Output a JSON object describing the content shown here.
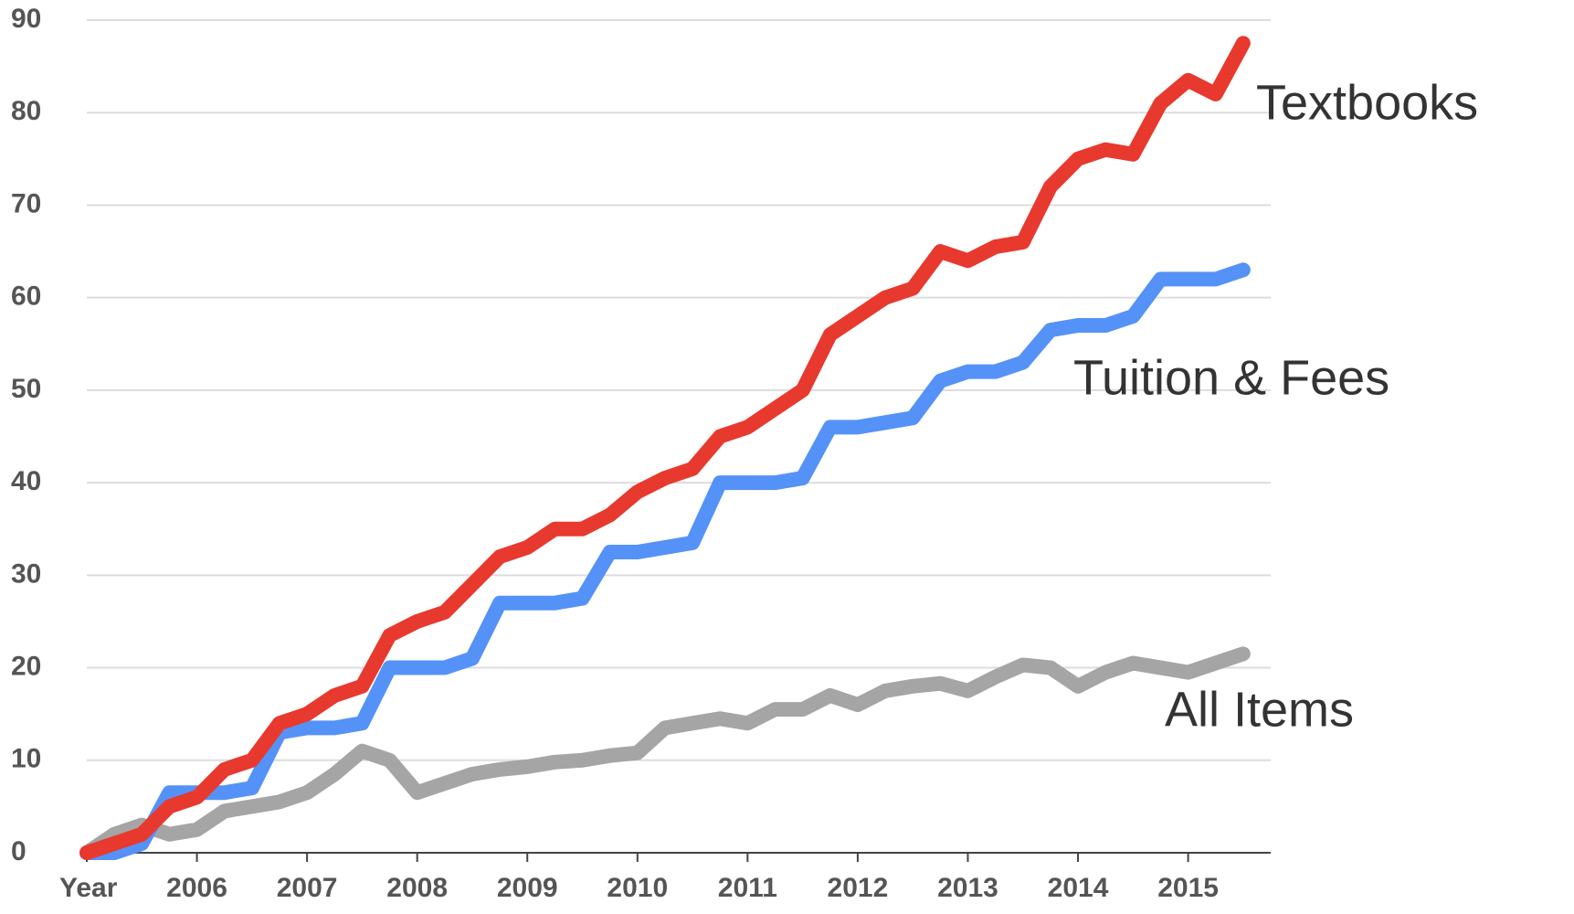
{
  "chart_data": {
    "type": "line",
    "x": [
      2005,
      2005.25,
      2005.5,
      2005.75,
      2006,
      2006.25,
      2006.5,
      2006.75,
      2007,
      2007.25,
      2007.5,
      2007.75,
      2008,
      2008.25,
      2008.5,
      2008.75,
      2009,
      2009.25,
      2009.5,
      2009.75,
      2010,
      2010.25,
      2010.5,
      2010.75,
      2011,
      2011.25,
      2011.5,
      2011.75,
      2012,
      2012.25,
      2012.5,
      2012.75,
      2013,
      2013.25,
      2013.5,
      2013.75,
      2014,
      2014.25,
      2014.5,
      2014.75,
      2015,
      2015.25,
      2015.5
    ],
    "series": [
      {
        "name": "Textbooks",
        "color": "#e8392e",
        "values": [
          0,
          1,
          2,
          5,
          6,
          9,
          10,
          14,
          15,
          17,
          18,
          23.5,
          25,
          26,
          29,
          32,
          33,
          35,
          35,
          36.5,
          39,
          40.5,
          41.5,
          45,
          46,
          48,
          50,
          56,
          58,
          60,
          61,
          65,
          64,
          65.5,
          66,
          72,
          75,
          76,
          75.5,
          81,
          83.5,
          82,
          87.5
        ]
      },
      {
        "name": "Tuition & Fees",
        "color": "#5592f7",
        "values": [
          0,
          0,
          1,
          6.5,
          6.5,
          6.5,
          7,
          13,
          13.5,
          13.5,
          14,
          20,
          20,
          20,
          21,
          27,
          27,
          27,
          27.5,
          32.5,
          32.5,
          33,
          33.5,
          40,
          40,
          40,
          40.5,
          46,
          46,
          46.5,
          47,
          51,
          52,
          52,
          53,
          56.5,
          57,
          57,
          58,
          62,
          62,
          62,
          63
        ]
      },
      {
        "name": "All Items",
        "color": "#a5a5a5",
        "values": [
          0,
          2,
          3,
          2,
          2.5,
          4.5,
          5,
          5.5,
          6.5,
          8.5,
          11,
          10,
          6.5,
          7.5,
          8.5,
          9,
          9.3,
          9.8,
          10,
          10.5,
          10.8,
          13.5,
          14,
          14.5,
          14,
          15.5,
          15.5,
          17,
          16,
          17.5,
          18,
          18.3,
          17.5,
          19,
          20.3,
          20,
          18,
          19.5,
          20.5,
          20,
          19.5,
          20.5,
          21.5
        ]
      }
    ],
    "xlim": [
      2005,
      2015.75
    ],
    "xticks": [
      {
        "value": 2005,
        "label": "Year"
      },
      2006,
      2007,
      2008,
      2009,
      2010,
      2011,
      2012,
      2013,
      2014,
      2015
    ],
    "ylim": [
      0,
      90
    ],
    "yticks": [
      0,
      10,
      20,
      30,
      40,
      50,
      60,
      70,
      80,
      90
    ],
    "grid": true
  }
}
